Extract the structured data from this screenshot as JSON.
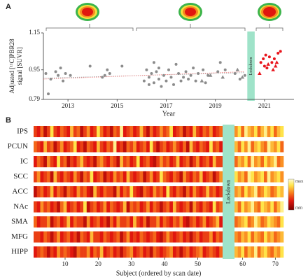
{
  "chart_data": [
    {
      "type": "scatter",
      "panel": "A",
      "xlabel": "Year",
      "ylabel": [
        "Adjusted [¹¹C]PBR28",
        "signal [SUVR]"
      ],
      "xlim": [
        2012,
        2022.2
      ],
      "xticks": [
        2013,
        2015,
        2017,
        2019,
        2021
      ],
      "ylim": [
        0.79,
        1.15
      ],
      "yticks": [
        0.79,
        0.95,
        1.15
      ],
      "lockdown": {
        "label": "Lockdown",
        "x": [
          2020.3,
          2020.6
        ],
        "color": "#9fe3c9"
      },
      "series": [
        {
          "color": "#8c8c8c",
          "marker": "circle",
          "x": [
            2012.1,
            2012.2,
            2012.3,
            2012.5,
            2012.6,
            2012.7,
            2012.8,
            2012.9,
            2013.1,
            2013.9,
            2014.4,
            2014.5,
            2014.6,
            2014.7,
            2015.2,
            2016.1,
            2016.2,
            2016.3,
            2016.3,
            2016.4,
            2016.5,
            2016.5,
            2016.6,
            2016.7,
            2016.7,
            2016.8,
            2016.9,
            2017.0,
            2017.1,
            2017.2,
            2017.3,
            2017.4,
            2017.5,
            2017.6,
            2017.7,
            2017.8,
            2017.9,
            2018.0,
            2018.1,
            2018.2,
            2018.3,
            2018.5,
            2018.6,
            2018.7,
            2019.1,
            2019.2,
            2019.4,
            2019.8,
            2020.0,
            2020.2
          ],
          "y": [
            0.93,
            0.82,
            0.9,
            0.94,
            0.92,
            0.96,
            0.89,
            0.93,
            0.92,
            0.97,
            0.91,
            0.92,
            0.95,
            0.93,
            0.97,
            0.89,
            0.95,
            0.91,
            0.87,
            0.93,
            0.99,
            0.88,
            0.94,
            0.9,
            0.96,
            0.86,
            0.92,
            0.89,
            0.95,
            0.91,
            0.87,
            0.98,
            0.93,
            0.89,
            0.91,
            0.94,
            0.9,
            0.92,
            0.96,
            0.89,
            0.93,
            0.95,
            0.88,
            0.92,
            0.94,
            0.99,
            0.95,
            0.93,
            0.9,
            0.92
          ]
        },
        {
          "color": "#8c8c8c",
          "marker": "triangle",
          "x": [
            2018.45,
            2018.8,
            2019.3,
            2019.9,
            2020.1
          ],
          "y": [
            0.89,
            0.92,
            0.91,
            0.95,
            0.91
          ]
        },
        {
          "color": "#e8141c",
          "marker": "circle",
          "x": [
            2020.85,
            2020.95,
            2021.0,
            2021.05,
            2021.1,
            2021.2,
            2021.3,
            2021.4,
            2021.55,
            2021.65
          ],
          "y": [
            0.99,
            1.01,
            0.97,
            1.03,
            0.96,
            1.02,
            0.99,
            1.01,
            1.04,
            1.05
          ]
        },
        {
          "color": "#e8141c",
          "marker": "triangle",
          "x": [
            2020.8,
            2021.15,
            2021.35,
            2021.45,
            2021.5
          ],
          "y": [
            0.93,
            0.98,
            0.95,
            0.97,
            0.99
          ]
        }
      ],
      "trend_lines": [
        {
          "color": "#9a9a9a",
          "x": [
            2012,
            2020.2
          ],
          "y": [
            0.905,
            0.935
          ]
        },
        {
          "color": "#ee7777",
          "x": [
            2012,
            2020.2
          ],
          "y": [
            0.9,
            0.94
          ]
        }
      ]
    },
    {
      "type": "heatmap",
      "panel": "B",
      "xlabel": "Subject (ordered by scan date)",
      "xticks": [
        10,
        20,
        30,
        40,
        50,
        60,
        70
      ],
      "lockdown": {
        "label": "Lockdown",
        "after": 57,
        "color": "#9fe3c9"
      },
      "colorbar": {
        "max": "max",
        "min": "min"
      },
      "clim": [
        0,
        10
      ],
      "rows": [
        "IPS",
        "PCUN",
        "IC",
        "SCC",
        "ACC",
        "NAc",
        "SMA",
        "MFG",
        "HIPP"
      ],
      "values": [
        [
          4,
          3,
          5,
          2,
          4,
          8,
          4,
          3,
          5,
          4,
          3,
          7,
          4,
          5,
          2,
          4,
          6,
          3,
          4,
          8,
          5,
          3,
          4,
          2,
          5,
          4,
          9,
          3,
          4,
          5,
          3,
          4,
          7,
          4,
          2,
          5,
          3,
          4,
          6,
          4,
          5,
          8,
          3,
          4,
          5,
          2,
          4,
          3,
          7,
          4,
          3,
          5,
          4,
          6,
          3,
          4,
          5,
          6,
          8,
          5,
          9,
          7,
          6,
          8,
          5,
          7,
          9,
          6,
          8,
          5,
          7,
          8
        ],
        [
          5,
          4,
          3,
          7,
          4,
          5,
          2,
          4,
          6,
          3,
          4,
          5,
          8,
          3,
          4,
          2,
          5,
          4,
          3,
          7,
          4,
          3,
          5,
          4,
          9,
          3,
          4,
          2,
          5,
          4,
          6,
          3,
          4,
          5,
          3,
          8,
          4,
          2,
          4,
          5,
          3,
          4,
          6,
          4,
          3,
          5,
          2,
          7,
          4,
          3,
          5,
          4,
          3,
          8,
          4,
          5,
          3,
          7,
          5,
          8,
          6,
          9,
          5,
          7,
          8,
          6,
          5,
          9,
          7,
          6,
          8,
          5
        ],
        [
          3,
          5,
          4,
          2,
          6,
          4,
          3,
          8,
          4,
          5,
          2,
          4,
          3,
          5,
          7,
          4,
          3,
          4,
          2,
          5,
          6,
          4,
          3,
          5,
          4,
          2,
          7,
          4,
          5,
          3,
          4,
          8,
          3,
          4,
          5,
          3,
          2,
          4,
          6,
          4,
          5,
          3,
          4,
          7,
          3,
          4,
          5,
          2,
          4,
          6,
          3,
          4,
          5,
          3,
          7,
          4,
          4,
          5,
          7,
          6,
          8,
          5,
          9,
          6,
          7,
          5,
          8,
          6,
          7,
          9,
          5,
          6
        ],
        [
          4,
          6,
          3,
          4,
          5,
          2,
          7,
          4,
          3,
          5,
          4,
          3,
          6,
          4,
          2,
          5,
          4,
          8,
          3,
          4,
          5,
          2,
          4,
          3,
          6,
          4,
          5,
          3,
          7,
          4,
          3,
          4,
          5,
          2,
          4,
          6,
          3,
          4,
          8,
          5,
          4,
          3,
          5,
          4,
          2,
          6,
          4,
          3,
          5,
          4,
          7,
          3,
          4,
          5,
          2,
          4,
          6,
          8,
          6,
          7,
          5,
          9,
          8,
          6,
          7,
          8,
          5,
          9,
          6,
          7,
          8,
          6
        ],
        [
          2,
          4,
          5,
          3,
          4,
          7,
          3,
          5,
          4,
          2,
          5,
          4,
          3,
          6,
          4,
          5,
          3,
          2,
          7,
          4,
          3,
          5,
          4,
          4,
          2,
          6,
          3,
          5,
          4,
          8,
          4,
          3,
          2,
          5,
          4,
          3,
          6,
          4,
          5,
          3,
          8,
          4,
          3,
          5,
          4,
          2,
          5,
          3,
          6,
          4,
          3,
          4,
          7,
          4,
          5,
          3,
          4,
          6,
          7,
          5,
          8,
          6,
          7,
          9,
          5,
          6,
          8,
          7,
          5,
          6,
          8,
          7
        ],
        [
          4,
          3,
          6,
          4,
          5,
          3,
          4,
          2,
          5,
          7,
          3,
          4,
          5,
          3,
          4,
          8,
          2,
          4,
          5,
          3,
          4,
          6,
          3,
          5,
          4,
          3,
          4,
          7,
          2,
          5,
          4,
          5,
          3,
          4,
          6,
          3,
          5,
          4,
          2,
          4,
          5,
          3,
          7,
          4,
          3,
          4,
          5,
          2,
          6,
          4,
          3,
          5,
          4,
          3,
          8,
          4,
          5,
          7,
          5,
          8,
          6,
          7,
          9,
          6,
          5,
          8,
          7,
          6,
          8,
          5,
          7,
          9
        ],
        [
          5,
          3,
          4,
          4,
          6,
          2,
          4,
          5,
          3,
          4,
          7,
          3,
          5,
          4,
          4,
          2,
          6,
          3,
          4,
          5,
          3,
          4,
          2,
          5,
          3,
          6,
          4,
          4,
          5,
          3,
          7,
          4,
          3,
          5,
          2,
          4,
          4,
          6,
          3,
          5,
          4,
          3,
          5,
          4,
          6,
          3,
          2,
          4,
          5,
          3,
          4,
          6,
          3,
          4,
          5,
          7,
          3,
          5,
          6,
          7,
          8,
          5,
          6,
          9,
          7,
          5,
          6,
          8,
          7,
          6,
          5,
          8
        ],
        [
          4,
          4,
          3,
          5,
          4,
          2,
          4,
          6,
          3,
          4,
          5,
          3,
          4,
          2,
          5,
          4,
          3,
          7,
          4,
          4,
          3,
          5,
          4,
          3,
          4,
          5,
          2,
          4,
          6,
          3,
          4,
          3,
          5,
          4,
          3,
          4,
          5,
          3,
          2,
          4,
          6,
          4,
          3,
          4,
          5,
          3,
          4,
          2,
          4,
          5,
          3,
          4,
          4,
          6,
          3,
          5,
          4,
          6,
          5,
          7,
          6,
          8,
          5,
          7,
          6,
          5,
          8,
          6,
          7,
          5,
          6,
          7
        ],
        [
          3,
          4,
          5,
          4,
          2,
          4,
          3,
          6,
          4,
          5,
          4,
          3,
          2,
          5,
          4,
          4,
          6,
          3,
          5,
          4,
          7,
          3,
          4,
          5,
          3,
          4,
          2,
          4,
          5,
          6,
          3,
          4,
          5,
          3,
          4,
          2,
          5,
          4,
          3,
          4,
          5,
          6,
          3,
          4,
          2,
          4,
          5,
          3,
          4,
          5,
          6,
          3,
          4,
          5,
          4,
          3,
          5,
          7,
          6,
          8,
          5,
          7,
          6,
          9,
          5,
          7,
          8,
          6,
          5,
          7,
          6,
          8
        ]
      ]
    }
  ]
}
